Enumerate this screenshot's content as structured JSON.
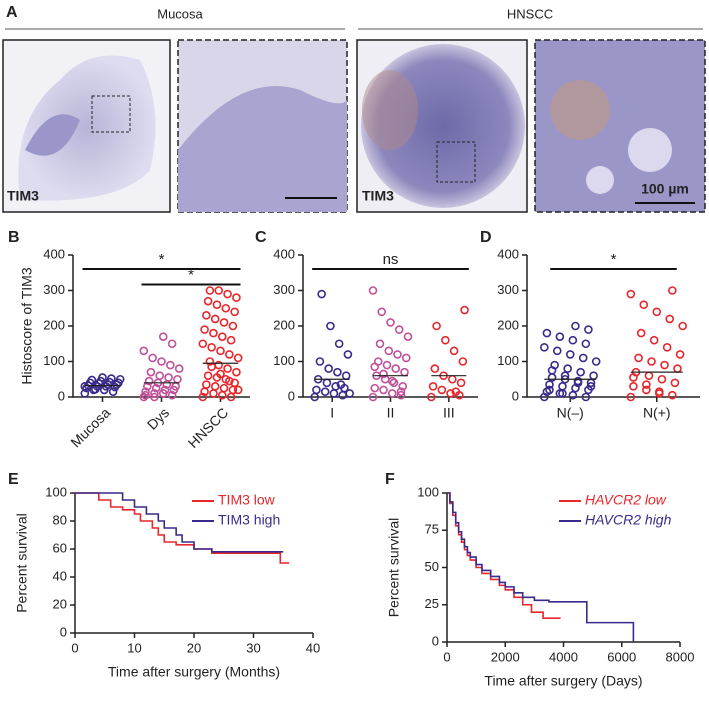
{
  "panel_a": {
    "label": "A",
    "groups": [
      "Mucosa",
      "HNSCC"
    ],
    "stain_labels": [
      "TIM3",
      "TIM3"
    ],
    "scale_bar": "100 µm"
  },
  "chart_data": [
    {
      "type": "dot",
      "label": "B",
      "ylabel": "Histoscore of TIM3",
      "categories": [
        "Mucosa",
        "Dys",
        "HNSCC"
      ],
      "colors": [
        "#3a2a8c",
        "#c0509a",
        "#e8262b"
      ],
      "values": [
        [
          10,
          15,
          20,
          22,
          25,
          28,
          30,
          30,
          32,
          35,
          35,
          38,
          40,
          40,
          42,
          45,
          48,
          50,
          52,
          55,
          20,
          30
        ],
        [
          0,
          5,
          10,
          10,
          15,
          20,
          20,
          25,
          30,
          30,
          35,
          40,
          45,
          50,
          55,
          60,
          70,
          80,
          90,
          100,
          110,
          130,
          150,
          170,
          0,
          5
        ],
        [
          0,
          0,
          5,
          10,
          15,
          20,
          25,
          30,
          35,
          40,
          50,
          55,
          60,
          70,
          80,
          90,
          100,
          110,
          120,
          130,
          140,
          150,
          160,
          170,
          180,
          190,
          200,
          210,
          220,
          230,
          240,
          250,
          260,
          270,
          280,
          290,
          300,
          300,
          20,
          45,
          65,
          85
        ]
      ],
      "means": [
        32,
        40,
        95
      ],
      "ylim": [
        0,
        400
      ],
      "yticks": [
        0,
        100,
        200,
        300,
        400
      ],
      "annotations": [
        {
          "text": "*",
          "from": 0,
          "to": 2
        },
        {
          "text": "*",
          "from": 1,
          "to": 2
        }
      ]
    },
    {
      "type": "dot",
      "label": "C",
      "categories": [
        "I",
        "II",
        "III"
      ],
      "colors": [
        "#3a2a8c",
        "#c0509a",
        "#e8262b"
      ],
      "values": [
        [
          0,
          5,
          10,
          15,
          20,
          25,
          30,
          40,
          50,
          60,
          70,
          80,
          100,
          120,
          150,
          200,
          290,
          10,
          35
        ],
        [
          0,
          5,
          10,
          20,
          25,
          30,
          40,
          50,
          60,
          70,
          80,
          90,
          100,
          110,
          120,
          130,
          150,
          170,
          190,
          210,
          240,
          300,
          15,
          45,
          65,
          85
        ],
        [
          0,
          5,
          10,
          20,
          30,
          40,
          50,
          60,
          80,
          100,
          130,
          160,
          200,
          245,
          15
        ]
      ],
      "means": [
        50,
        60,
        60
      ],
      "ylim": [
        0,
        400
      ],
      "yticks": [
        0,
        100,
        200,
        300,
        400
      ],
      "annotations": [
        {
          "text": "ns",
          "from": 0,
          "to": 2
        }
      ]
    },
    {
      "type": "dot",
      "label": "D",
      "categories": [
        "N(–)",
        "N(+)"
      ],
      "colors": [
        "#3a2a8c",
        "#e8262b"
      ],
      "values": [
        [
          0,
          0,
          5,
          10,
          15,
          20,
          25,
          30,
          35,
          40,
          45,
          50,
          55,
          60,
          70,
          80,
          90,
          100,
          110,
          120,
          130,
          140,
          150,
          160,
          170,
          180,
          190,
          200,
          10,
          20,
          30,
          40,
          60,
          75
        ],
        [
          0,
          5,
          10,
          20,
          30,
          40,
          50,
          60,
          70,
          80,
          90,
          100,
          110,
          120,
          140,
          160,
          180,
          200,
          220,
          240,
          260,
          290,
          300,
          15,
          35,
          55
        ]
      ],
      "means": [
        50,
        70
      ],
      "ylim": [
        0,
        400
      ],
      "yticks": [
        0,
        100,
        200,
        300,
        400
      ],
      "annotations": [
        {
          "text": "*",
          "from": 0,
          "to": 1
        }
      ]
    },
    {
      "type": "step",
      "label": "E",
      "ylabel": "Percent survival",
      "xlabel": "Time after surgery (Months)",
      "series": [
        {
          "name": "TIM3 low",
          "color": "#e8262b",
          "x": [
            0,
            4,
            6,
            8,
            10,
            11,
            13,
            14,
            15,
            17,
            20,
            23,
            34.5,
            36
          ],
          "values": [
            100,
            95,
            90,
            88,
            85,
            80,
            75,
            70,
            65,
            63,
            60,
            57,
            50,
            50
          ]
        },
        {
          "name": "TIM3 high",
          "color": "#3a2a8c",
          "x": [
            0,
            8,
            10,
            12,
            14,
            15,
            17,
            18,
            20,
            23,
            35
          ],
          "values": [
            100,
            95,
            90,
            85,
            80,
            75,
            70,
            65,
            60,
            58,
            58
          ]
        }
      ],
      "xlim": [
        0,
        40
      ],
      "xticks": [
        0,
        10,
        20,
        30,
        40
      ],
      "ylim": [
        0,
        100
      ],
      "yticks": [
        0,
        20,
        40,
        60,
        80,
        100
      ]
    },
    {
      "type": "step",
      "label": "F",
      "ylabel": "Percent survival",
      "xlabel": "Time after surgery (Days)",
      "series": [
        {
          "name": "HAVCR2 low",
          "color": "#e8262b",
          "x": [
            0,
            100,
            200,
            300,
            400,
            500,
            600,
            700,
            800,
            1000,
            1200,
            1500,
            1800,
            2000,
            2300,
            2600,
            2900,
            3300,
            3900
          ],
          "values": [
            100,
            93,
            85,
            78,
            72,
            67,
            62,
            58,
            55,
            50,
            46,
            42,
            38,
            35,
            30,
            25,
            20,
            16,
            16
          ]
        },
        {
          "name": "HAVCR2 high",
          "color": "#3a2a8c",
          "x": [
            0,
            100,
            200,
            300,
            400,
            500,
            600,
            700,
            800,
            1000,
            1200,
            1500,
            1800,
            2000,
            2300,
            2600,
            3000,
            3500,
            4800,
            6400
          ],
          "values": [
            100,
            94,
            87,
            80,
            74,
            69,
            64,
            60,
            57,
            52,
            48,
            44,
            40,
            37,
            33,
            30,
            28,
            27,
            13,
            0
          ]
        }
      ],
      "xlim": [
        0,
        8000
      ],
      "xticks": [
        0,
        2000,
        4000,
        6000,
        8000
      ],
      "ylim": [
        0,
        100
      ],
      "yticks": [
        0,
        25,
        50,
        75,
        100
      ]
    }
  ]
}
